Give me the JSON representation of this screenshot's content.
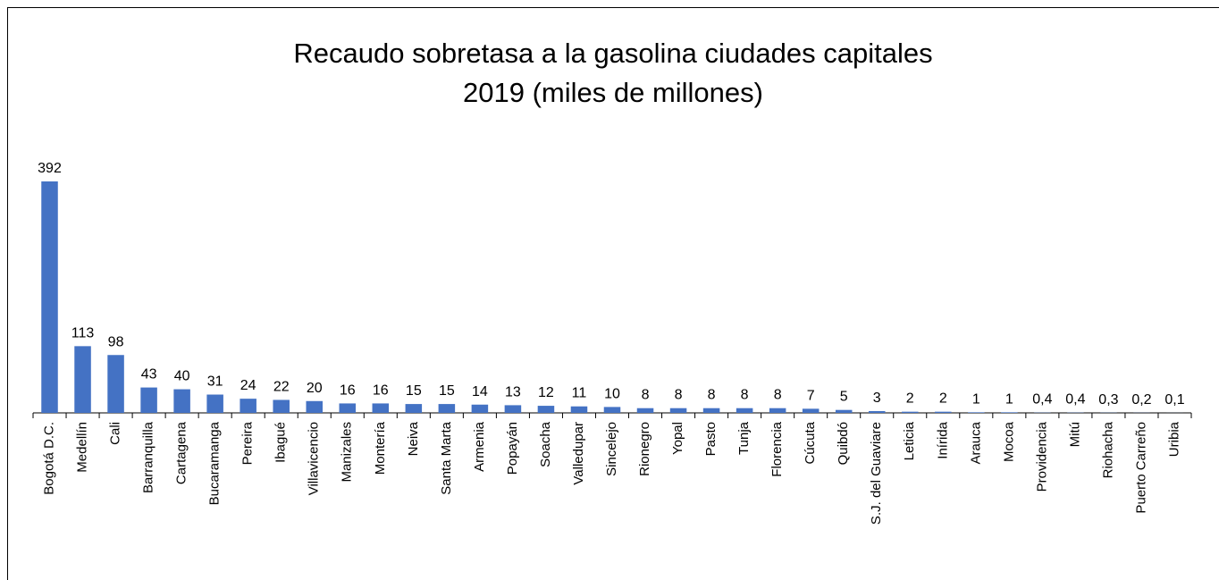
{
  "chart_data": {
    "type": "bar",
    "title": [
      "Recaudo sobretasa a la gasolina ciudades capitales",
      "2019 (miles de millones)"
    ],
    "categories": [
      "Bogotá D.C.",
      "Medellín",
      "Cali",
      "Barranquilla",
      "Cartagena",
      "Bucaramanga",
      "Pereira",
      "Ibagué",
      "Villavicencio",
      "Manizales",
      "Montería",
      "Neiva",
      "Santa Marta",
      "Armenia",
      "Popayán",
      "Soacha",
      "Valledupar",
      "Sincelejo",
      "Rionegro",
      "Yopal",
      "Pasto",
      "Tunja",
      "Florencia",
      "Cúcuta",
      "Quibdó",
      "S.J. del Guaviare",
      "Leticia",
      "Inírida",
      "Arauca",
      "Mocoa",
      "Providencia",
      "Mitú",
      "Riohacha",
      "Puerto Carreño",
      "Uribia"
    ],
    "values": [
      392,
      113,
      98,
      43,
      40,
      31,
      24,
      22,
      20,
      16,
      16,
      15,
      15,
      14,
      13,
      12,
      11,
      10,
      8,
      8,
      8,
      8,
      8,
      7,
      5,
      3,
      2,
      2,
      1,
      1,
      0.4,
      0.4,
      0.3,
      0.2,
      0.1
    ],
    "value_labels": [
      "392",
      "113",
      "98",
      "43",
      "40",
      "31",
      "24",
      "22",
      "20",
      "16",
      "16",
      "15",
      "15",
      "14",
      "13",
      "12",
      "11",
      "10",
      "8",
      "8",
      "8",
      "8",
      "8",
      "7",
      "5",
      "3",
      "2",
      "2",
      "1",
      "1",
      "0,4",
      "0,4",
      "0,3",
      "0,2",
      "0,1"
    ],
    "color": "#4472c4"
  }
}
